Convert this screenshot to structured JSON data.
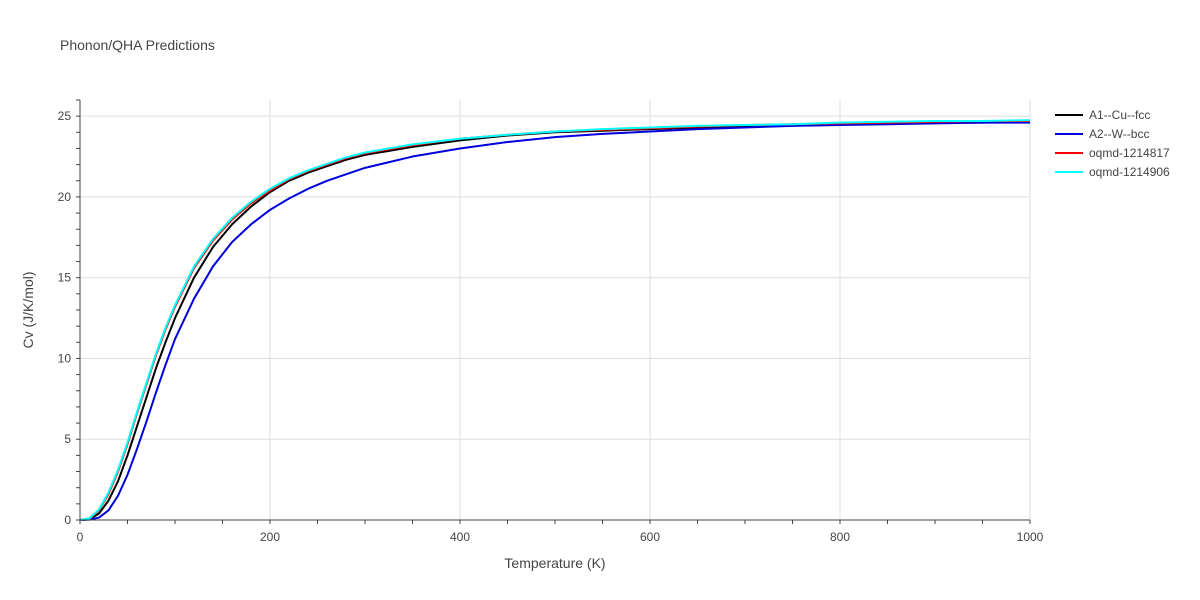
{
  "chart_data": {
    "type": "line",
    "title": "Phonon/QHA Predictions",
    "xlabel": "Temperature (K)",
    "ylabel": "Cv (J/K/mol)",
    "xlim": [
      0,
      1000
    ],
    "ylim": [
      0,
      26
    ],
    "xticks": [
      0,
      200,
      400,
      600,
      800,
      1000
    ],
    "yticks": [
      0,
      5,
      10,
      15,
      20,
      25
    ],
    "x_tick_labels": [
      "0",
      "200",
      "400",
      "600",
      "800",
      "1000"
    ],
    "y_tick_labels": [
      "0",
      "5",
      "10",
      "15",
      "20",
      "25"
    ],
    "grid": true,
    "legend_position": "top-right",
    "series": [
      {
        "name": "A1--Cu--fcc",
        "color": "#000000",
        "x": [
          0,
          10,
          20,
          30,
          40,
          50,
          60,
          70,
          80,
          90,
          100,
          120,
          140,
          160,
          180,
          200,
          220,
          240,
          260,
          280,
          300,
          350,
          400,
          450,
          500,
          550,
          600,
          650,
          700,
          750,
          800,
          850,
          900,
          950,
          1000
        ],
        "values": [
          0,
          0.05,
          0.4,
          1.2,
          2.4,
          4.0,
          5.8,
          7.6,
          9.4,
          11.0,
          12.5,
          15.0,
          16.9,
          18.3,
          19.4,
          20.3,
          21.0,
          21.5,
          21.9,
          22.3,
          22.6,
          23.1,
          23.5,
          23.8,
          24.0,
          24.1,
          24.2,
          24.3,
          24.4,
          24.45,
          24.5,
          24.55,
          24.6,
          24.6,
          24.65
        ]
      },
      {
        "name": "A2--W--bcc",
        "color": "#0000dd",
        "x": [
          0,
          10,
          20,
          30,
          40,
          50,
          60,
          70,
          80,
          90,
          100,
          120,
          140,
          160,
          180,
          200,
          220,
          240,
          260,
          280,
          300,
          350,
          400,
          450,
          500,
          550,
          600,
          650,
          700,
          750,
          800,
          850,
          900,
          950,
          1000
        ],
        "values": [
          0,
          0.02,
          0.15,
          0.6,
          1.5,
          2.8,
          4.4,
          6.1,
          7.9,
          9.6,
          11.2,
          13.7,
          15.7,
          17.2,
          18.3,
          19.2,
          19.9,
          20.5,
          21.0,
          21.4,
          21.8,
          22.5,
          23.0,
          23.4,
          23.7,
          23.9,
          24.05,
          24.2,
          24.3,
          24.4,
          24.45,
          24.5,
          24.55,
          24.6,
          24.6
        ]
      },
      {
        "name": "oqmd-1214817",
        "color": "#ff0000",
        "x": [
          0,
          10,
          20,
          30,
          40,
          50,
          60,
          70,
          80,
          90,
          100,
          120,
          140,
          160,
          180,
          200,
          220,
          240,
          260,
          280,
          300,
          350,
          400,
          450,
          500,
          550,
          600,
          650,
          700,
          750,
          800,
          850,
          900,
          950,
          1000
        ],
        "values": [
          0,
          0.08,
          0.6,
          1.6,
          3.0,
          4.7,
          6.6,
          8.4,
          10.2,
          11.8,
          13.2,
          15.6,
          17.3,
          18.6,
          19.6,
          20.4,
          21.1,
          21.6,
          22.0,
          22.4,
          22.7,
          23.2,
          23.6,
          23.85,
          24.05,
          24.15,
          24.25,
          24.35,
          24.45,
          24.5,
          24.55,
          24.6,
          24.65,
          24.7,
          24.7
        ]
      },
      {
        "name": "oqmd-1214906",
        "color": "#00ffff",
        "x": [
          0,
          10,
          20,
          30,
          40,
          50,
          60,
          70,
          80,
          90,
          100,
          120,
          140,
          160,
          180,
          200,
          220,
          240,
          260,
          280,
          300,
          350,
          400,
          450,
          500,
          550,
          600,
          650,
          700,
          750,
          800,
          850,
          900,
          950,
          1000
        ],
        "values": [
          0,
          0.1,
          0.65,
          1.7,
          3.1,
          4.8,
          6.7,
          8.5,
          10.3,
          11.9,
          13.3,
          15.7,
          17.4,
          18.7,
          19.7,
          20.5,
          21.15,
          21.65,
          22.05,
          22.45,
          22.75,
          23.25,
          23.6,
          23.85,
          24.05,
          24.2,
          24.3,
          24.4,
          24.45,
          24.5,
          24.6,
          24.65,
          24.7,
          24.7,
          24.75
        ]
      }
    ]
  }
}
